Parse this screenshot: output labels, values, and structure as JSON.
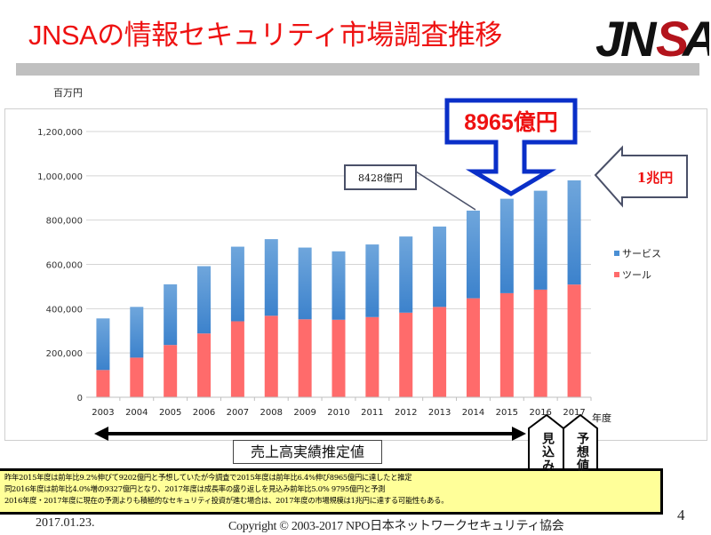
{
  "header": {
    "title": "JNSAの情報セキュリティ市場調査推移",
    "logo_text": "JNSA"
  },
  "colors": {
    "title": "#ee1111",
    "service": "#4a8fd4",
    "tool": "#ff6b6b",
    "callout_blue": "#0a2fc8",
    "callout_gray": "#4a5068",
    "note_bg": "#ffff99"
  },
  "chart_data": {
    "type": "bar",
    "stacked": true,
    "unit_label": "百万円",
    "xlabel": "年度",
    "ylabel": "",
    "ylim": [
      0,
      1200000
    ],
    "yticks": [
      0,
      200000,
      400000,
      600000,
      800000,
      1000000,
      1200000
    ],
    "ytick_labels": [
      "0",
      "200,000",
      "400,000",
      "600,000",
      "800,000",
      "1,000,000",
      "1,200,000"
    ],
    "grid": true,
    "legend_position": "right",
    "categories": [
      "2003",
      "2004",
      "2005",
      "2006",
      "2007",
      "2008",
      "2009",
      "2010",
      "2011",
      "2012",
      "2013",
      "2014",
      "2015",
      "2016",
      "2017"
    ],
    "series": [
      {
        "name": "ツール",
        "values": [
          123000,
          179000,
          236000,
          288000,
          343000,
          368000,
          352000,
          350000,
          362000,
          382000,
          408000,
          447000,
          470000,
          486000,
          509000
        ]
      },
      {
        "name": "サービス",
        "values": [
          233000,
          229000,
          274000,
          304000,
          337000,
          346000,
          324000,
          309000,
          328000,
          344000,
          363000,
          395800,
          426500,
          446700,
          470500
        ]
      }
    ],
    "legend": [
      "サービス",
      "ツール"
    ]
  },
  "annotations": {
    "callout_2015": "8965億円",
    "callout_2014": "8428億円",
    "callout_target": "1兆円",
    "actual_range": "売上高実績推定値",
    "forecast_2016": "見込み",
    "forecast_2017": "予想値"
  },
  "notes": [
    "昨年2015年度は前年比9.2%伸びて9202億円と予想していたが今調査で2015年度は前年比6.4%伸び8965億円に達したと推定",
    "同2016年度は前年比4.0%増の9327億円となり、2017年度は成長率の盛り返しを見込み前年比5.0%  9795億円と予測",
    "2016年度・2017年度に現在の予測よりも積極的なセキュリティ投資が進む場合は、2017年度の市場規模は1兆円に達する可能性もある。"
  ],
  "footer": {
    "date": "2017.01.23.",
    "copyright": "Copyright © 2003-2017  NPO日本ネットワークセキュリティ協会",
    "page_number": "4"
  }
}
